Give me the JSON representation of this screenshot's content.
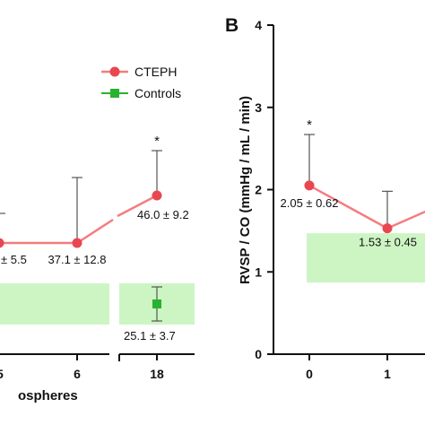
{
  "colors": {
    "cteph": "#e8474f",
    "cteph_line": "#f47c80",
    "controls": "#29b22f",
    "band": "#cdf5c4",
    "axis": "#111111",
    "errorbar": "#555555"
  },
  "legend": {
    "cteph_label": "CTEPH",
    "controls_label": "Controls"
  },
  "chart_data": [
    {
      "panel_label": "",
      "type": "line",
      "xlabel": "ospheres",
      "ylabel": "",
      "x_ticks": [
        "5",
        "6",
        "18"
      ],
      "x_values": [
        5,
        6,
        18
      ],
      "axis_break": true,
      "legend_position": "top-right",
      "series": [
        {
          "name": "CTEPH",
          "points": [
            {
              "x": 5,
              "label": "± 5.5",
              "errorbar_up": false,
              "annotation": ""
            },
            {
              "x": 6,
              "y": 37.1,
              "sd": 12.8,
              "label": "37.1 ± 12.8",
              "errorbar_up": true,
              "annotation": ""
            },
            {
              "x": 18,
              "y": 46.0,
              "sd": 9.2,
              "label": "46.0 ± 9.2",
              "errorbar_up": true,
              "annotation": "*"
            }
          ]
        },
        {
          "name": "Controls",
          "points": [
            {
              "x": 18,
              "y": 25.1,
              "sd": 3.7,
              "label": "25.1 ± 3.7"
            }
          ],
          "band": true
        }
      ]
    },
    {
      "panel_label": "B",
      "type": "line",
      "xlabel": "",
      "ylabel": "RVSP / CO (mmHg / mL / min)",
      "y_ticks": [
        "0",
        "1",
        "2",
        "3",
        "4"
      ],
      "ylim": [
        0,
        4
      ],
      "x_ticks": [
        "0",
        "1"
      ],
      "x_values": [
        0,
        1
      ],
      "series": [
        {
          "name": "CTEPH",
          "points": [
            {
              "x": 0,
              "y": 2.05,
              "sd": 0.62,
              "label": "2.05 ± 0.62",
              "annotation": "*"
            },
            {
              "x": 1,
              "y": 1.53,
              "sd": 0.45,
              "label": "1.53 ± 0.45",
              "annotation": ""
            }
          ]
        },
        {
          "name": "Controls",
          "band_range": [
            0.87,
            1.47
          ]
        }
      ]
    }
  ]
}
